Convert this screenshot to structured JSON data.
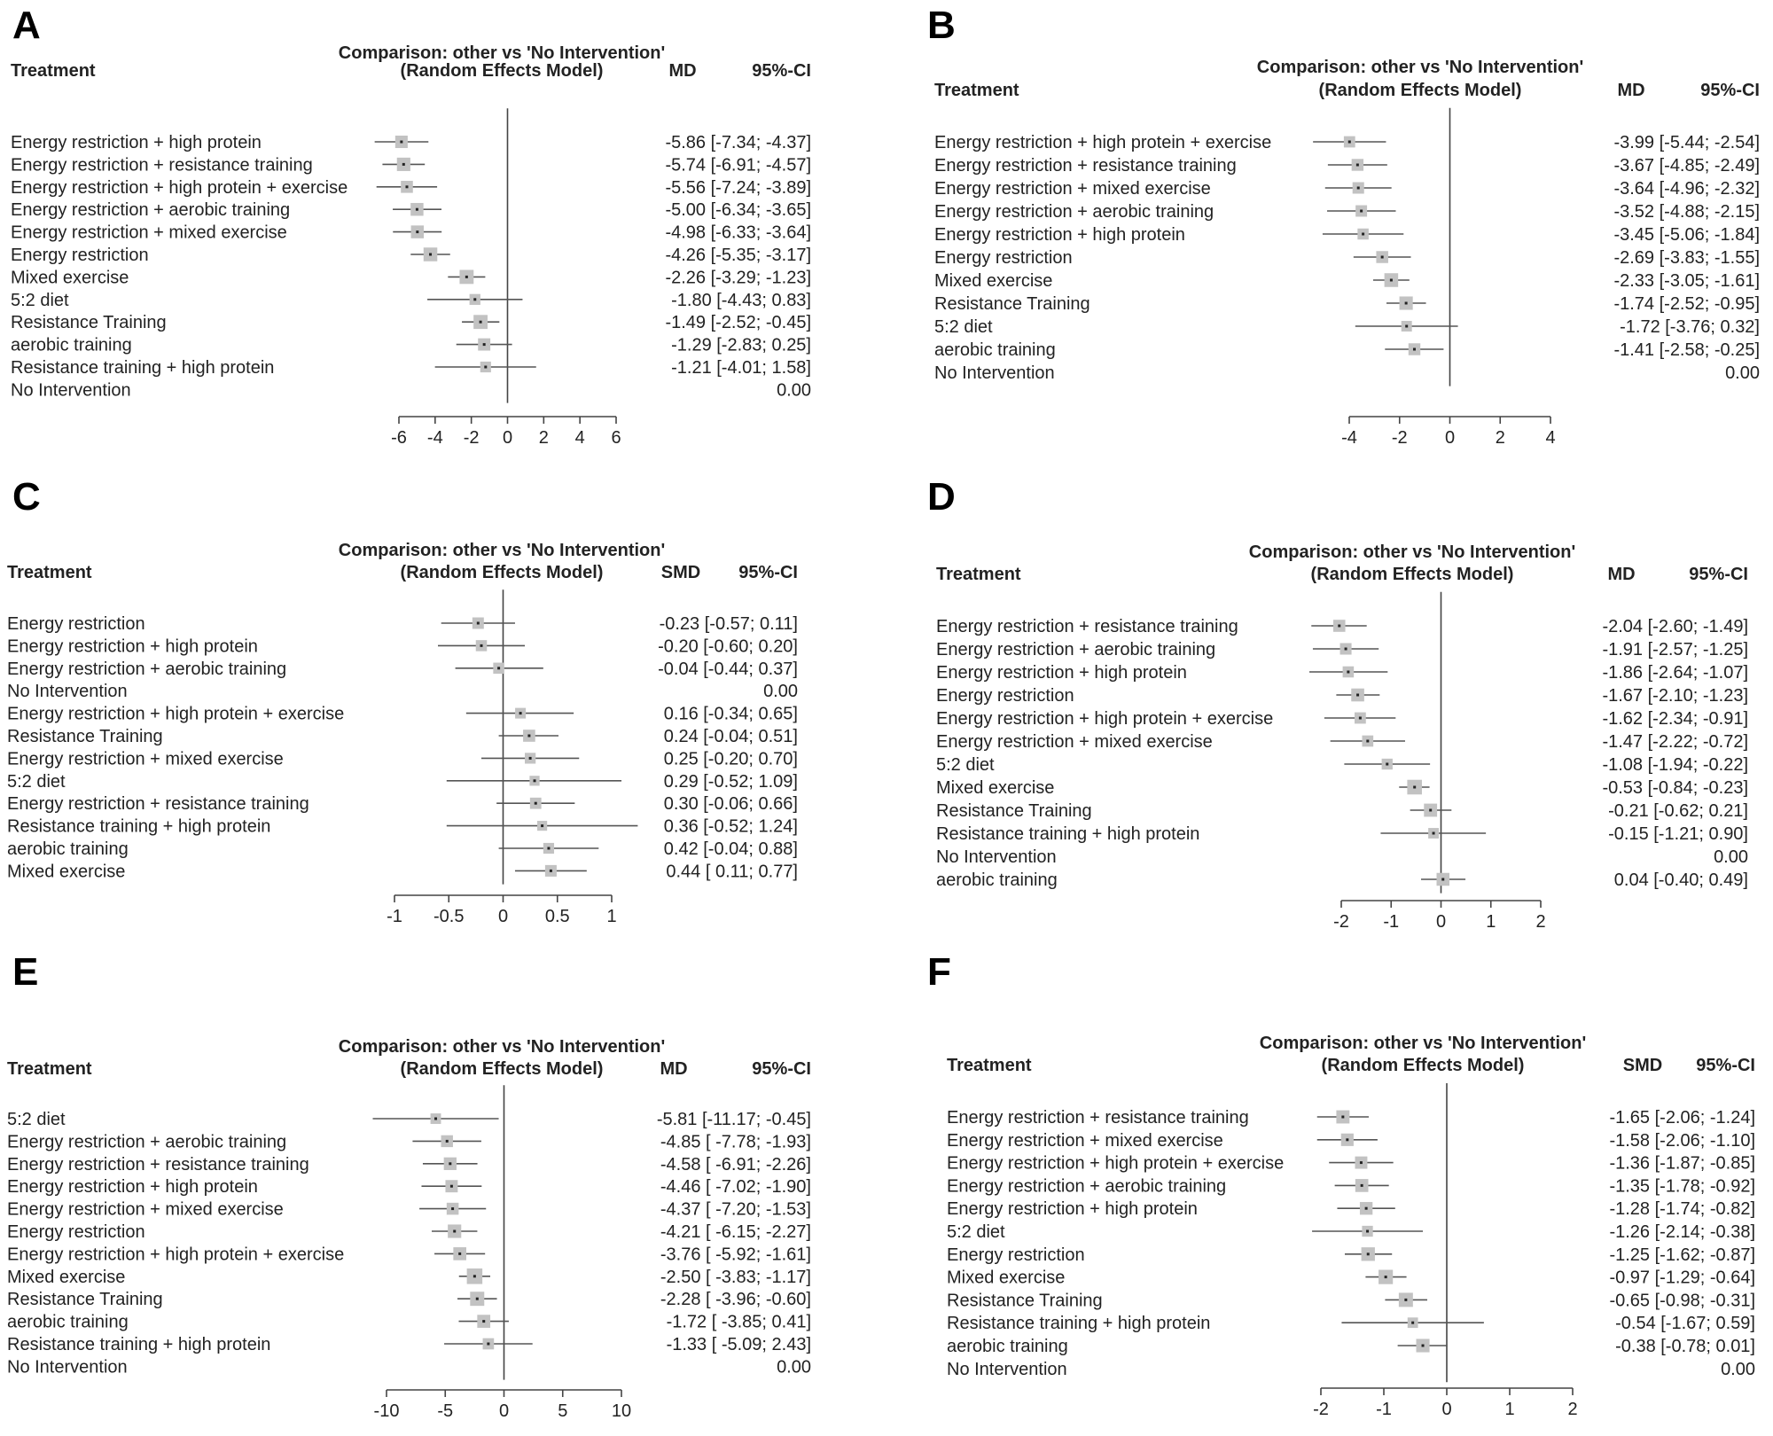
{
  "chart_data": [
    {
      "type": "forest",
      "panel": "A",
      "title": "Comparison: other vs 'No Intervention'",
      "subtitle": "(Random Effects Model)",
      "header_treatment": "Treatment",
      "measure": "MD",
      "header_ci": "95%-CI",
      "xlim": [
        -6,
        6
      ],
      "ticks": [
        -6,
        -4,
        -2,
        0,
        2,
        4,
        6
      ],
      "rows": [
        {
          "label": "Energy restriction + high protein",
          "est": -5.86,
          "lo": -7.34,
          "hi": -4.37,
          "ci_text": "-5.86 [-7.34; -4.37]"
        },
        {
          "label": "Energy restriction + resistance training",
          "est": -5.74,
          "lo": -6.91,
          "hi": -4.57,
          "ci_text": "-5.74 [-6.91; -4.57]"
        },
        {
          "label": "Energy restriction + high protein + exercise",
          "est": -5.56,
          "lo": -7.24,
          "hi": -3.89,
          "ci_text": "-5.56 [-7.24; -3.89]"
        },
        {
          "label": "Energy restriction + aerobic training",
          "est": -5.0,
          "lo": -6.34,
          "hi": -3.65,
          "ci_text": "-5.00 [-6.34; -3.65]"
        },
        {
          "label": "Energy restriction + mixed exercise",
          "est": -4.98,
          "lo": -6.33,
          "hi": -3.64,
          "ci_text": "-4.98 [-6.33; -3.64]"
        },
        {
          "label": "Energy restriction",
          "est": -4.26,
          "lo": -5.35,
          "hi": -3.17,
          "ci_text": "-4.26 [-5.35; -3.17]"
        },
        {
          "label": "Mixed exercise",
          "est": -2.26,
          "lo": -3.29,
          "hi": -1.23,
          "ci_text": "-2.26 [-3.29; -1.23]"
        },
        {
          "label": "5:2 diet",
          "est": -1.8,
          "lo": -4.43,
          "hi": 0.83,
          "ci_text": "-1.80 [-4.43;  0.83]"
        },
        {
          "label": "Resistance Training",
          "est": -1.49,
          "lo": -2.52,
          "hi": -0.45,
          "ci_text": "-1.49 [-2.52; -0.45]"
        },
        {
          "label": "aerobic training",
          "est": -1.29,
          "lo": -2.83,
          "hi": 0.25,
          "ci_text": "-1.29 [-2.83;  0.25]"
        },
        {
          "label": "Resistance training + high protein",
          "est": -1.21,
          "lo": -4.01,
          "hi": 1.58,
          "ci_text": "-1.21 [-4.01;  1.58]"
        },
        {
          "label": "No Intervention",
          "est": null,
          "lo": null,
          "hi": null,
          "ci_text": "0.00"
        }
      ]
    },
    {
      "type": "forest",
      "panel": "B",
      "title": "Comparison: other vs 'No Intervention'",
      "subtitle": "(Random Effects Model)",
      "header_treatment": "Treatment",
      "measure": "MD",
      "header_ci": "95%-CI",
      "xlim": [
        -4,
        4
      ],
      "ticks": [
        -4,
        -2,
        0,
        2,
        4
      ],
      "rows": [
        {
          "label": "Energy restriction + high protein + exercise",
          "est": -3.99,
          "lo": -5.44,
          "hi": -2.54,
          "ci_text": "-3.99 [-5.44; -2.54]"
        },
        {
          "label": "Energy restriction + resistance training",
          "est": -3.67,
          "lo": -4.85,
          "hi": -2.49,
          "ci_text": "-3.67 [-4.85; -2.49]"
        },
        {
          "label": "Energy restriction + mixed exercise",
          "est": -3.64,
          "lo": -4.96,
          "hi": -2.32,
          "ci_text": "-3.64 [-4.96; -2.32]"
        },
        {
          "label": "Energy restriction + aerobic training",
          "est": -3.52,
          "lo": -4.88,
          "hi": -2.15,
          "ci_text": "-3.52 [-4.88; -2.15]"
        },
        {
          "label": "Energy restriction + high protein",
          "est": -3.45,
          "lo": -5.06,
          "hi": -1.84,
          "ci_text": "-3.45 [-5.06; -1.84]"
        },
        {
          "label": "Energy restriction",
          "est": -2.69,
          "lo": -3.83,
          "hi": -1.55,
          "ci_text": "-2.69 [-3.83; -1.55]"
        },
        {
          "label": "Mixed exercise",
          "est": -2.33,
          "lo": -3.05,
          "hi": -1.61,
          "ci_text": "-2.33 [-3.05; -1.61]"
        },
        {
          "label": "Resistance Training",
          "est": -1.74,
          "lo": -2.52,
          "hi": -0.95,
          "ci_text": "-1.74 [-2.52; -0.95]"
        },
        {
          "label": "5:2 diet",
          "est": -1.72,
          "lo": -3.76,
          "hi": 0.32,
          "ci_text": "-1.72 [-3.76;  0.32]"
        },
        {
          "label": "aerobic training",
          "est": -1.41,
          "lo": -2.58,
          "hi": -0.25,
          "ci_text": "-1.41 [-2.58; -0.25]"
        },
        {
          "label": "No Intervention",
          "est": null,
          "lo": null,
          "hi": null,
          "ci_text": "0.00"
        }
      ]
    },
    {
      "type": "forest",
      "panel": "C",
      "title": "Comparison: other vs 'No Intervention'",
      "subtitle": "(Random Effects Model)",
      "header_treatment": "Treatment",
      "measure": "SMD",
      "header_ci": "95%-CI",
      "xlim": [
        -1,
        1
      ],
      "ticks": [
        -1,
        -0.5,
        0,
        0.5,
        1
      ],
      "rows": [
        {
          "label": "Energy restriction",
          "est": -0.23,
          "lo": -0.57,
          "hi": 0.11,
          "ci_text": "-0.23 [-0.57; 0.11]"
        },
        {
          "label": "Energy restriction + high protein",
          "est": -0.2,
          "lo": -0.6,
          "hi": 0.2,
          "ci_text": "-0.20 [-0.60; 0.20]"
        },
        {
          "label": "Energy restriction + aerobic training",
          "est": -0.04,
          "lo": -0.44,
          "hi": 0.37,
          "ci_text": "-0.04 [-0.44; 0.37]"
        },
        {
          "label": "No Intervention",
          "est": null,
          "lo": null,
          "hi": null,
          "ci_text": "0.00"
        },
        {
          "label": "Energy restriction + high protein + exercise",
          "est": 0.16,
          "lo": -0.34,
          "hi": 0.65,
          "ci_text": "0.16 [-0.34; 0.65]"
        },
        {
          "label": "Resistance Training",
          "est": 0.24,
          "lo": -0.04,
          "hi": 0.51,
          "ci_text": "0.24 [-0.04; 0.51]"
        },
        {
          "label": "Energy restriction + mixed exercise",
          "est": 0.25,
          "lo": -0.2,
          "hi": 0.7,
          "ci_text": "0.25 [-0.20; 0.70]"
        },
        {
          "label": "5:2 diet",
          "est": 0.29,
          "lo": -0.52,
          "hi": 1.09,
          "ci_text": "0.29 [-0.52; 1.09]"
        },
        {
          "label": "Energy restriction + resistance training",
          "est": 0.3,
          "lo": -0.06,
          "hi": 0.66,
          "ci_text": "0.30 [-0.06; 0.66]"
        },
        {
          "label": "Resistance training + high protein",
          "est": 0.36,
          "lo": -0.52,
          "hi": 1.24,
          "ci_text": "0.36 [-0.52; 1.24]"
        },
        {
          "label": "aerobic training",
          "est": 0.42,
          "lo": -0.04,
          "hi": 0.88,
          "ci_text": "0.42 [-0.04; 0.88]"
        },
        {
          "label": "Mixed exercise",
          "est": 0.44,
          "lo": 0.11,
          "hi": 0.77,
          "ci_text": "0.44 [ 0.11; 0.77]"
        }
      ]
    },
    {
      "type": "forest",
      "panel": "D",
      "title": "Comparison: other vs 'No Intervention'",
      "subtitle": "(Random Effects Model)",
      "header_treatment": "Treatment",
      "measure": "MD",
      "header_ci": "95%-CI",
      "xlim": [
        -2,
        2
      ],
      "ticks": [
        -2,
        -1,
        0,
        1,
        2
      ],
      "rows": [
        {
          "label": "Energy restriction + resistance training",
          "est": -2.04,
          "lo": -2.6,
          "hi": -1.49,
          "ci_text": "-2.04 [-2.60; -1.49]"
        },
        {
          "label": "Energy restriction + aerobic training",
          "est": -1.91,
          "lo": -2.57,
          "hi": -1.25,
          "ci_text": "-1.91 [-2.57; -1.25]"
        },
        {
          "label": "Energy restriction + high protein",
          "est": -1.86,
          "lo": -2.64,
          "hi": -1.07,
          "ci_text": "-1.86 [-2.64; -1.07]"
        },
        {
          "label": "Energy restriction",
          "est": -1.67,
          "lo": -2.1,
          "hi": -1.23,
          "ci_text": "-1.67 [-2.10; -1.23]"
        },
        {
          "label": "Energy restriction + high protein + exercise",
          "est": -1.62,
          "lo": -2.34,
          "hi": -0.91,
          "ci_text": "-1.62 [-2.34; -0.91]"
        },
        {
          "label": "Energy restriction + mixed exercise",
          "est": -1.47,
          "lo": -2.22,
          "hi": -0.72,
          "ci_text": "-1.47 [-2.22; -0.72]"
        },
        {
          "label": "5:2 diet",
          "est": -1.08,
          "lo": -1.94,
          "hi": -0.22,
          "ci_text": "-1.08 [-1.94; -0.22]"
        },
        {
          "label": "Mixed exercise",
          "est": -0.53,
          "lo": -0.84,
          "hi": -0.23,
          "ci_text": "-0.53 [-0.84; -0.23]"
        },
        {
          "label": "Resistance Training",
          "est": -0.21,
          "lo": -0.62,
          "hi": 0.21,
          "ci_text": "-0.21 [-0.62;  0.21]"
        },
        {
          "label": "Resistance training + high protein",
          "est": -0.15,
          "lo": -1.21,
          "hi": 0.9,
          "ci_text": "-0.15 [-1.21;  0.90]"
        },
        {
          "label": "No Intervention",
          "est": null,
          "lo": null,
          "hi": null,
          "ci_text": "0.00"
        },
        {
          "label": "aerobic training",
          "est": 0.04,
          "lo": -0.4,
          "hi": 0.49,
          "ci_text": "0.04 [-0.40;  0.49]"
        }
      ]
    },
    {
      "type": "forest",
      "panel": "E",
      "title": "Comparison: other vs 'No Intervention'",
      "subtitle": "(Random Effects Model)",
      "header_treatment": "Treatment",
      "measure": "MD",
      "header_ci": "95%-CI",
      "xlim": [
        -10,
        10
      ],
      "ticks": [
        -10,
        -5,
        0,
        5,
        10
      ],
      "rows": [
        {
          "label": "5:2 diet",
          "est": -5.81,
          "lo": -11.17,
          "hi": -0.45,
          "ci_text": "-5.81 [-11.17; -0.45]"
        },
        {
          "label": "Energy restriction + aerobic training",
          "est": -4.85,
          "lo": -7.78,
          "hi": -1.93,
          "ci_text": "-4.85 [ -7.78; -1.93]"
        },
        {
          "label": "Energy restriction + resistance training",
          "est": -4.58,
          "lo": -6.91,
          "hi": -2.26,
          "ci_text": "-4.58 [ -6.91; -2.26]"
        },
        {
          "label": "Energy restriction + high protein",
          "est": -4.46,
          "lo": -7.02,
          "hi": -1.9,
          "ci_text": "-4.46 [ -7.02; -1.90]"
        },
        {
          "label": "Energy restriction + mixed exercise",
          "est": -4.37,
          "lo": -7.2,
          "hi": -1.53,
          "ci_text": "-4.37 [ -7.20; -1.53]"
        },
        {
          "label": "Energy restriction",
          "est": -4.21,
          "lo": -6.15,
          "hi": -2.27,
          "ci_text": "-4.21 [ -6.15; -2.27]"
        },
        {
          "label": "Energy restriction + high protein + exercise",
          "est": -3.76,
          "lo": -5.92,
          "hi": -1.61,
          "ci_text": "-3.76 [ -5.92; -1.61]"
        },
        {
          "label": "Mixed exercise",
          "est": -2.5,
          "lo": -3.83,
          "hi": -1.17,
          "ci_text": "-2.50 [ -3.83; -1.17]"
        },
        {
          "label": "Resistance Training",
          "est": -2.28,
          "lo": -3.96,
          "hi": -0.6,
          "ci_text": "-2.28 [ -3.96; -0.60]"
        },
        {
          "label": "aerobic training",
          "est": -1.72,
          "lo": -3.85,
          "hi": 0.41,
          "ci_text": "-1.72 [ -3.85;  0.41]"
        },
        {
          "label": "Resistance training + high protein",
          "est": -1.33,
          "lo": -5.09,
          "hi": 2.43,
          "ci_text": "-1.33 [ -5.09;  2.43]"
        },
        {
          "label": "No Intervention",
          "est": null,
          "lo": null,
          "hi": null,
          "ci_text": "0.00"
        }
      ]
    },
    {
      "type": "forest",
      "panel": "F",
      "title": "Comparison: other vs 'No Intervention'",
      "subtitle": "(Random Effects Model)",
      "header_treatment": "Treatment",
      "measure": "SMD",
      "header_ci": "95%-CI",
      "xlim": [
        -2,
        2
      ],
      "ticks": [
        -2,
        -1,
        0,
        1,
        2
      ],
      "rows": [
        {
          "label": "Energy restriction + resistance training",
          "est": -1.65,
          "lo": -2.06,
          "hi": -1.24,
          "ci_text": "-1.65 [-2.06; -1.24]"
        },
        {
          "label": "Energy restriction + mixed exercise",
          "est": -1.58,
          "lo": -2.06,
          "hi": -1.1,
          "ci_text": "-1.58 [-2.06; -1.10]"
        },
        {
          "label": "Energy restriction + high protein + exercise",
          "est": -1.36,
          "lo": -1.87,
          "hi": -0.85,
          "ci_text": "-1.36 [-1.87; -0.85]"
        },
        {
          "label": "Energy restriction + aerobic training",
          "est": -1.35,
          "lo": -1.78,
          "hi": -0.92,
          "ci_text": "-1.35 [-1.78; -0.92]"
        },
        {
          "label": "Energy restriction + high protein",
          "est": -1.28,
          "lo": -1.74,
          "hi": -0.82,
          "ci_text": "-1.28 [-1.74; -0.82]"
        },
        {
          "label": "5:2 diet",
          "est": -1.26,
          "lo": -2.14,
          "hi": -0.38,
          "ci_text": "-1.26 [-2.14; -0.38]"
        },
        {
          "label": "Energy restriction",
          "est": -1.25,
          "lo": -1.62,
          "hi": -0.87,
          "ci_text": "-1.25 [-1.62; -0.87]"
        },
        {
          "label": "Mixed exercise",
          "est": -0.97,
          "lo": -1.29,
          "hi": -0.64,
          "ci_text": "-0.97 [-1.29; -0.64]"
        },
        {
          "label": "Resistance Training",
          "est": -0.65,
          "lo": -0.98,
          "hi": -0.31,
          "ci_text": "-0.65 [-0.98; -0.31]"
        },
        {
          "label": "Resistance training + high protein",
          "est": -0.54,
          "lo": -1.67,
          "hi": 0.59,
          "ci_text": "-0.54 [-1.67;  0.59]"
        },
        {
          "label": "aerobic training",
          "est": -0.38,
          "lo": -0.78,
          "hi": 0.01,
          "ci_text": "-0.38 [-0.78;  0.01]"
        },
        {
          "label": "No Intervention",
          "est": null,
          "lo": null,
          "hi": null,
          "ci_text": "0.00"
        }
      ]
    }
  ]
}
